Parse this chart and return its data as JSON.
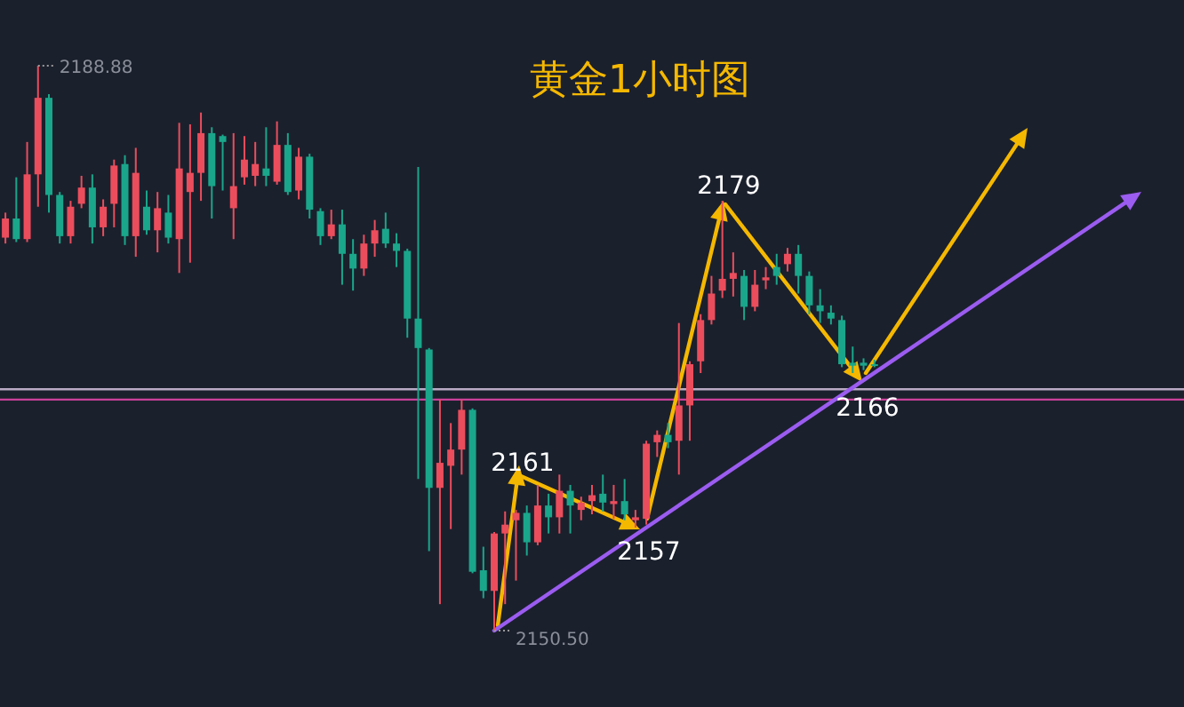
{
  "chart_data": {
    "type": "candlestick",
    "title": "黄金1小时图",
    "categories": [
      null,
      null,
      null,
      null,
      null,
      null,
      null,
      null,
      null,
      null,
      null,
      null,
      null,
      null,
      null,
      null,
      null,
      null,
      null,
      null,
      null,
      null,
      null,
      null,
      null,
      null,
      null,
      null,
      null,
      null,
      null,
      null,
      null,
      null,
      null,
      null,
      null,
      null,
      null,
      null,
      null,
      null,
      null,
      null,
      null,
      null,
      null,
      null,
      null,
      null,
      null,
      null,
      null,
      null,
      null,
      null,
      null,
      null,
      null,
      null,
      null,
      null,
      null,
      null,
      null,
      null,
      null,
      null,
      null,
      null,
      null,
      null,
      null,
      null,
      null,
      null,
      null,
      null,
      null,
      null,
      null
    ],
    "ohlc": [
      [
        2177.2,
        2178.9,
        2176.8,
        2178.5
      ],
      [
        2178.5,
        2181.3,
        2176.9,
        2177.1
      ],
      [
        2177.1,
        2183.7,
        2176.9,
        2181.5
      ],
      [
        2181.5,
        2188.88,
        2179.3,
        2186.7
      ],
      [
        2186.7,
        2186.95,
        2178.9,
        2180.1
      ],
      [
        2180.1,
        2180.3,
        2176.8,
        2177.3
      ],
      [
        2177.3,
        2179.7,
        2176.8,
        2179.3
      ],
      [
        2179.5,
        2181.4,
        2179.2,
        2180.6
      ],
      [
        2180.6,
        2181.5,
        2176.8,
        2177.9
      ],
      [
        2177.9,
        2179.8,
        2177.3,
        2179.3
      ],
      [
        2179.5,
        2182.5,
        2177.9,
        2182.1
      ],
      [
        2182.2,
        2182.8,
        2176.7,
        2177.3
      ],
      [
        2177.3,
        2183.3,
        2175.9,
        2181.6
      ],
      [
        2179.3,
        2180.4,
        2177.4,
        2177.7
      ],
      [
        2177.7,
        2180.3,
        2176.2,
        2179.2
      ],
      [
        2178.9,
        2180.1,
        2176.8,
        2177.2
      ],
      [
        2177.1,
        2185.0,
        2174.8,
        2181.9
      ],
      [
        2180.3,
        2184.9,
        2175.5,
        2181.6
      ],
      [
        2181.6,
        2185.7,
        2179.7,
        2184.3
      ],
      [
        2184.3,
        2184.7,
        2178.5,
        2180.7
      ],
      [
        2184.1,
        2184.2,
        2180.4,
        2183.7
      ],
      [
        2179.2,
        2184.3,
        2177.1,
        2180.7
      ],
      [
        2181.3,
        2184.1,
        2180.8,
        2182.5
      ],
      [
        2181.4,
        2183.7,
        2180.7,
        2182.2
      ],
      [
        2181.9,
        2184.7,
        2180.7,
        2181.4
      ],
      [
        2181.0,
        2185.1,
        2180.8,
        2183.5
      ],
      [
        2183.5,
        2184.3,
        2180.1,
        2180.3
      ],
      [
        2180.4,
        2183.3,
        2179.8,
        2182.7
      ],
      [
        2182.7,
        2182.9,
        2178.5,
        2179.1
      ],
      [
        2179.0,
        2179.2,
        2176.7,
        2177.3
      ],
      [
        2177.3,
        2179.1,
        2177.1,
        2178.1
      ],
      [
        2178.1,
        2179.1,
        2174.0,
        2176.1
      ],
      [
        2176.1,
        2177.1,
        2173.6,
        2175.1
      ],
      [
        2175.1,
        2177.4,
        2174.6,
        2176.8
      ],
      [
        2176.8,
        2178.4,
        2175.9,
        2177.7
      ],
      [
        2177.8,
        2178.9,
        2176.5,
        2176.8
      ],
      [
        2176.8,
        2177.5,
        2175.2,
        2176.3
      ],
      [
        2176.3,
        2176.45,
        2170.4,
        2171.7
      ],
      [
        2171.7,
        2182.0,
        2160.8,
        2169.7
      ],
      [
        2169.6,
        2169.7,
        2155.9,
        2160.2
      ],
      [
        2160.2,
        2166.2,
        2152.3,
        2161.9
      ],
      [
        2161.7,
        2164.6,
        2157.4,
        2162.8
      ],
      [
        2162.8,
        2166.2,
        2161.1,
        2165.5
      ],
      [
        2165.5,
        2165.6,
        2154.4,
        2154.5
      ],
      [
        2154.6,
        2156.2,
        2152.7,
        2153.2
      ],
      [
        2153.2,
        2157.2,
        2150.5,
        2157.1
      ],
      [
        2157.1,
        2158.6,
        2152.3,
        2157.7
      ],
      [
        2158.0,
        2158.7,
        2153.9,
        2158.5
      ],
      [
        2158.5,
        2159.0,
        2155.6,
        2156.5
      ],
      [
        2156.5,
        2160.4,
        2156.3,
        2159.0
      ],
      [
        2159.0,
        2159.8,
        2157.1,
        2158.2
      ],
      [
        2158.2,
        2161.1,
        2157.1,
        2160.0
      ],
      [
        2160.0,
        2160.4,
        2157.1,
        2159.0
      ],
      [
        2158.7,
        2159.6,
        2158.0,
        2159.2
      ],
      [
        2159.3,
        2160.4,
        2158.4,
        2159.7
      ],
      [
        2159.8,
        2161.1,
        2158.6,
        2159.2
      ],
      [
        2159.1,
        2160.4,
        2158.1,
        2159.3
      ],
      [
        2159.3,
        2160.8,
        2158.0,
        2158.4
      ],
      [
        2158.0,
        2158.7,
        2157.5,
        2158.2
      ],
      [
        2158.1,
        2163.4,
        2157.7,
        2163.2
      ],
      [
        2163.3,
        2164.1,
        2162.3,
        2163.8
      ],
      [
        2163.8,
        2164.6,
        2162.9,
        2163.3
      ],
      [
        2163.4,
        2171.4,
        2161.1,
        2165.8
      ],
      [
        2165.8,
        2168.8,
        2163.4,
        2168.6
      ],
      [
        2168.8,
        2172.0,
        2168.0,
        2171.6
      ],
      [
        2171.6,
        2174.6,
        2171.3,
        2173.4
      ],
      [
        2173.6,
        2179.7,
        2173.1,
        2174.4
      ],
      [
        2174.4,
        2176.2,
        2173.2,
        2174.8
      ],
      [
        2174.6,
        2175.0,
        2171.6,
        2172.5
      ],
      [
        2172.5,
        2175.0,
        2172.2,
        2174.0
      ],
      [
        2174.3,
        2175.2,
        2173.7,
        2174.5
      ],
      [
        2175.2,
        2176.1,
        2174.0,
        2174.6
      ],
      [
        2175.4,
        2176.5,
        2174.9,
        2176.1
      ],
      [
        2176.1,
        2176.7,
        2173.4,
        2174.6
      ],
      [
        2174.6,
        2174.9,
        2172.0,
        2172.6
      ],
      [
        2172.6,
        2173.7,
        2171.4,
        2172.2
      ],
      [
        2172.1,
        2172.6,
        2171.3,
        2171.7
      ],
      [
        2171.6,
        2171.9,
        2168.4,
        2168.6
      ],
      [
        2168.7,
        2169.8,
        2168.0,
        2168.5
      ],
      [
        2168.7,
        2169.0,
        2168.2,
        2168.5
      ],
      [
        2168.6,
        2168.9,
        2168.4,
        2168.5
      ]
    ],
    "colors": [
      "#eb4d5c",
      "#1aa68a",
      "#eb4d5c",
      "#eb4d5c",
      "#1aa68a",
      "#1aa68a",
      "#eb4d5c",
      "#eb4d5c",
      "#1aa68a",
      "#eb4d5c",
      "#eb4d5c",
      "#1aa68a",
      "#eb4d5c",
      "#1aa68a",
      "#eb4d5c",
      "#1aa68a",
      "#eb4d5c",
      "#eb4d5c",
      "#eb4d5c",
      "#1aa68a",
      "#1aa68a",
      "#eb4d5c",
      "#eb4d5c",
      "#eb4d5c",
      "#1aa68a",
      "#eb4d5c",
      "#1aa68a",
      "#eb4d5c",
      "#1aa68a",
      "#1aa68a",
      "#eb4d5c",
      "#1aa68a",
      "#1aa68a",
      "#eb4d5c",
      "#eb4d5c",
      "#1aa68a",
      "#1aa68a",
      "#1aa68a",
      "#1aa68a",
      "#1aa68a",
      "#eb4d5c",
      "#eb4d5c",
      "#eb4d5c",
      "#1aa68a",
      "#1aa68a",
      "#eb4d5c",
      "#eb4d5c",
      "#eb4d5c",
      "#1aa68a",
      "#eb4d5c",
      "#1aa68a",
      "#eb4d5c",
      "#1aa68a",
      "#eb4d5c",
      "#eb4d5c",
      "#1aa68a",
      "#eb4d5c",
      "#1aa68a",
      "#eb4d5c",
      "#eb4d5c",
      "#eb4d5c",
      "#1aa68a",
      "#eb4d5c",
      "#eb4d5c",
      "#eb4d5c",
      "#eb4d5c",
      "#eb4d5c",
      "#eb4d5c",
      "#1aa68a",
      "#eb4d5c",
      "#eb4d5c",
      "#1aa68a",
      "#eb4d5c",
      "#1aa68a",
      "#1aa68a",
      "#1aa68a",
      "#1aa68a",
      "#1aa68a",
      "#1aa68a",
      "#1aa68a",
      "#1aa68a"
    ],
    "ref_lines": [
      {
        "axis": "y",
        "value": 2166.9,
        "color": "#b9a9c4"
      },
      {
        "axis": "y",
        "value": 2166.2,
        "color": "#c9409a"
      }
    ],
    "annotations": [
      "2188.88",
      "2150.50",
      "2179",
      "2161",
      "2157",
      "2166"
    ]
  }
}
